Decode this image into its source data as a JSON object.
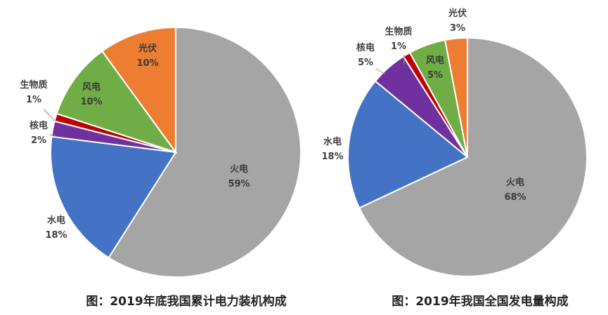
{
  "chart_data": [
    {
      "type": "pie",
      "title": "图：2019年底我国累计电力装机构成",
      "slices": [
        {
          "name": "火电",
          "value": 59,
          "label": "59%",
          "color": "#a5a5a5"
        },
        {
          "name": "水电",
          "value": 18,
          "label": "18%",
          "color": "#4472c4"
        },
        {
          "name": "核电",
          "value": 2,
          "label": "2%",
          "color": "#7030a0"
        },
        {
          "name": "生物质",
          "value": 1,
          "label": "1%",
          "color": "#c00000"
        },
        {
          "name": "风电",
          "value": 10,
          "label": "10%",
          "color": "#70ad47"
        },
        {
          "name": "光伏",
          "value": 10,
          "label": "10%",
          "color": "#ed7d31"
        }
      ]
    },
    {
      "type": "pie",
      "title": "图：2019年我国全国发电量构成",
      "slices": [
        {
          "name": "火电",
          "value": 68,
          "label": "68%",
          "color": "#a5a5a5"
        },
        {
          "name": "水电",
          "value": 18,
          "label": "18%",
          "color": "#4472c4"
        },
        {
          "name": "核电",
          "value": 5,
          "label": "5%",
          "color": "#7030a0"
        },
        {
          "name": "生物质",
          "value": 1,
          "label": "1%",
          "color": "#c00000"
        },
        {
          "name": "风电",
          "value": 5,
          "label": "5%",
          "color": "#70ad47"
        },
        {
          "name": "光伏",
          "value": 3,
          "label": "3%",
          "color": "#ed7d31"
        }
      ]
    }
  ]
}
